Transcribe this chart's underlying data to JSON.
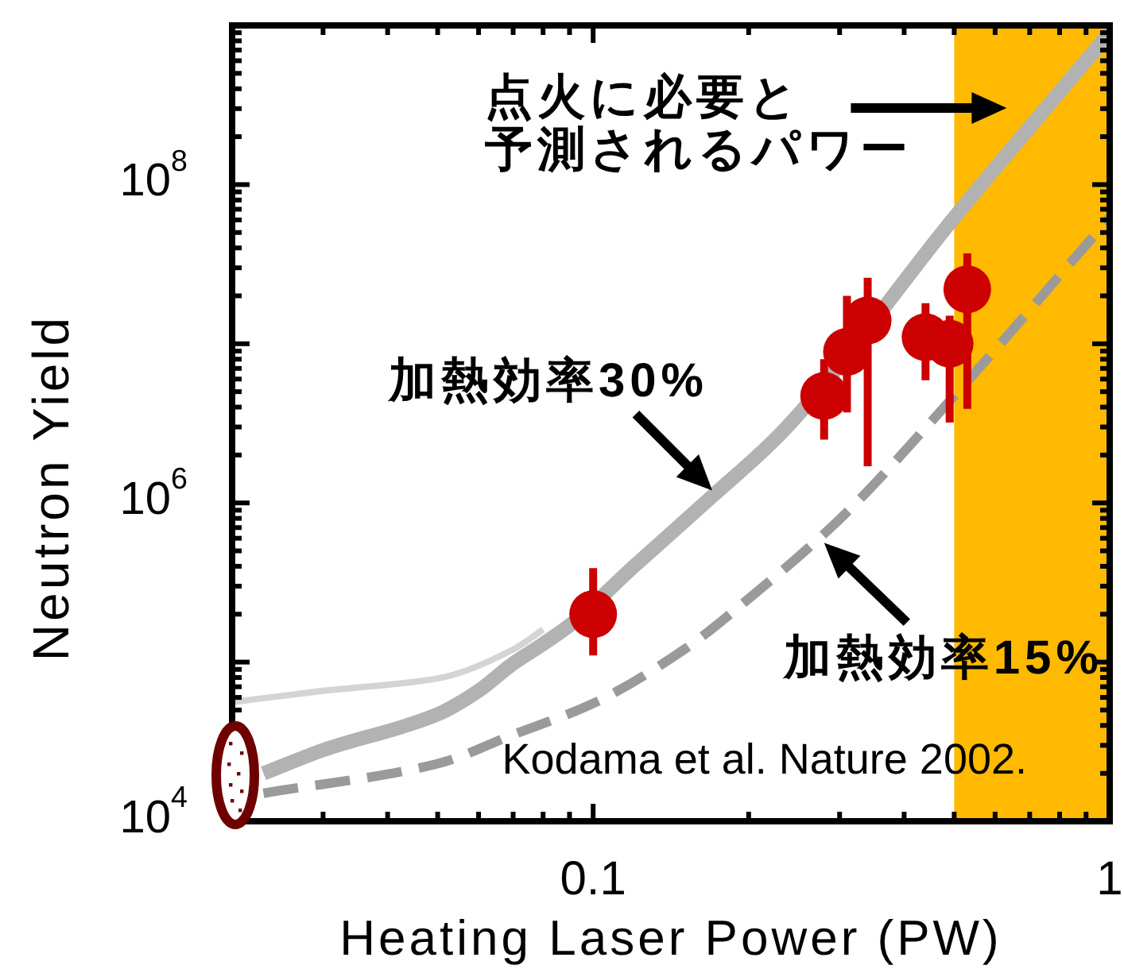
{
  "chart_data": {
    "type": "line",
    "xlabel": "Heating Laser Power (PW)",
    "ylabel": "Neutron Yield",
    "log": "xy",
    "xlim": [
      0.02,
      1
    ],
    "ylim": [
      10000,
      1000000000
    ],
    "xticks": [
      0.1,
      1
    ],
    "yticks": [
      {
        "value": 10000,
        "label": "10$^{4}$"
      },
      {
        "value": 100000,
        "label": null
      },
      {
        "value": 1000000,
        "label": "10$^{6}$"
      },
      {
        "value": 10000000,
        "label": null
      },
      {
        "value": 100000000,
        "label": "10$^{8}$"
      }
    ],
    "bands": [
      {
        "axis": "x",
        "from": 0.5,
        "to": 1,
        "label": "点火に必要と予測されるパワー",
        "color": "#ffba00"
      }
    ],
    "series": [
      {
        "color": "#d4d4d4",
        "line_style": "solid",
        "x": [
          0.02,
          0.03,
          0.05,
          0.07,
          0.08
        ],
        "values": [
          56000,
          66000,
          79000,
          120000,
          160000
        ]
      },
      {
        "color": "#b2b2b2",
        "line_style": "solid",
        "x": [
          0.023,
          0.03,
          0.05,
          0.06,
          0.07,
          0.08,
          0.09,
          0.12,
          0.17,
          0.23,
          0.5,
          1
        ],
        "values": [
          20000,
          28000,
          47000,
          66000,
          98000,
          130000,
          170000,
          400000,
          1100000,
          2700000,
          62000000,
          900000000
        ]
      },
      {
        "color": "#9a9a9a",
        "line_style": "dashed",
        "x": [
          0.023,
          0.05,
          0.07,
          0.1,
          0.15,
          0.2,
          0.3,
          0.5,
          1
        ],
        "values": [
          15000,
          23000,
          35000,
          55000,
          120000,
          250000,
          790000,
          4700000,
          62000000
        ]
      },
      {
        "type": "scatter",
        "color": "#cc0000",
        "marker": "circle",
        "x": [
          0.1,
          0.28,
          0.31,
          0.34,
          0.44,
          0.49,
          0.53
        ],
        "values": [
          200000,
          4700000,
          8900000,
          14000000,
          11000000,
          10000000,
          22000000
        ],
        "errors": [
          [
            110000,
            390000
          ],
          [
            2500000,
            8000000
          ],
          [
            3700000,
            20000000
          ],
          [
            1700000,
            26000000
          ],
          [
            5900000,
            18000000
          ],
          [
            3200000,
            15000000
          ],
          [
            3900000,
            37000000
          ]
        ]
      }
    ],
    "annotations": [
      "Kodama et al. Nature 2002.",
      {
        "text": "加熱効率30%",
        "x": 0.17,
        "y": 1200000
      },
      {
        "text": "加熱効率15%",
        "x": 0.28,
        "y": 560000
      }
    ]
  }
}
